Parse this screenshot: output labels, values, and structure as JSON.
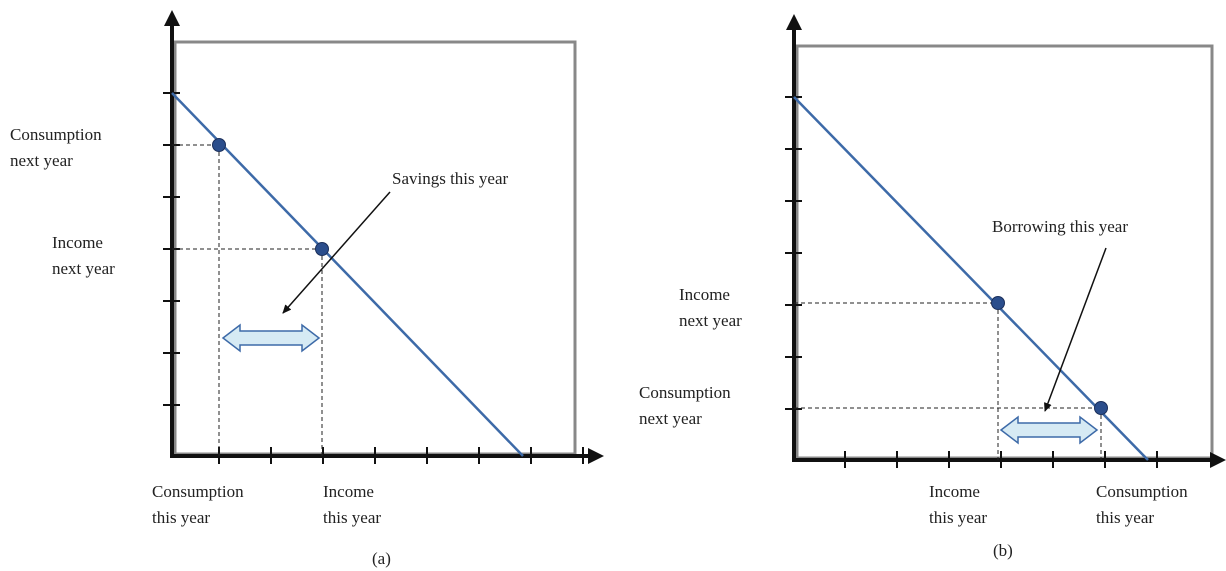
{
  "panel_a": {
    "caption": "(a)",
    "y_labels": {
      "consumption_next_year": [
        "Consumption",
        "next year"
      ],
      "income_next_year": [
        "Income",
        "next year"
      ]
    },
    "x_labels": {
      "consumption_this_year": [
        "Consumption",
        "this year"
      ],
      "income_this_year": [
        "Income",
        "this year"
      ]
    },
    "annotation": "Savings this year"
  },
  "panel_b": {
    "caption": "(b)",
    "y_labels": {
      "income_next_year": [
        "Income",
        "next year"
      ],
      "consumption_next_year": [
        "Consumption",
        "next year"
      ]
    },
    "x_labels": {
      "income_this_year": [
        "Income",
        "this year"
      ],
      "consumption_this_year": [
        "Consumption",
        "this year"
      ]
    },
    "annotation": "Borrowing this year"
  },
  "colors": {
    "budget_line": "#3d6aa8",
    "point_fill": "#2b4e8c",
    "arrow_fill": "#d6eaf4",
    "arrow_stroke": "#3d6aa8",
    "axis": "#111111",
    "frame_shadow": "#777777"
  }
}
